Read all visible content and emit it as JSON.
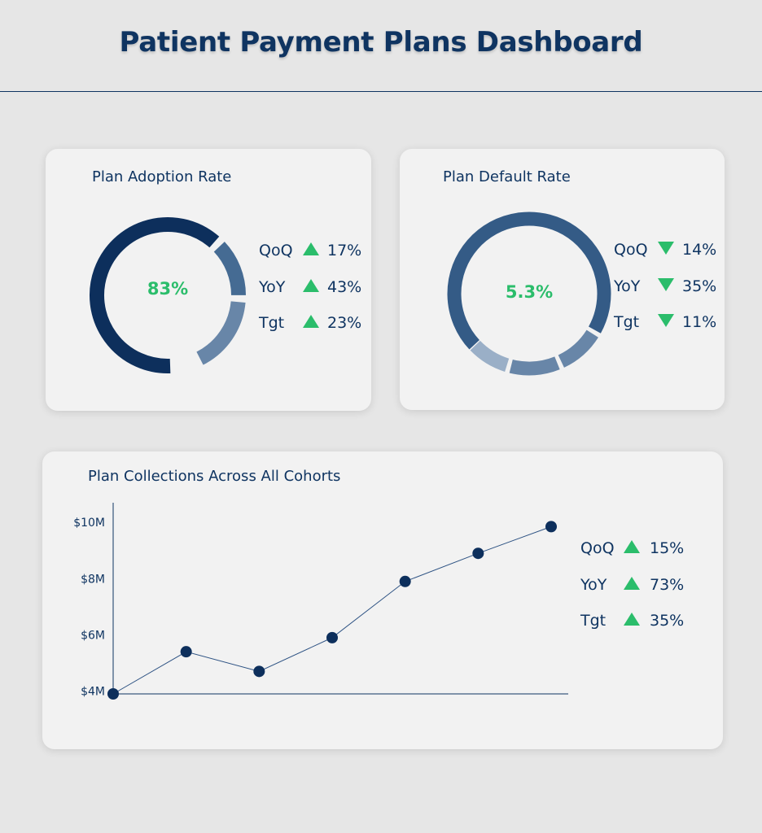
{
  "header": {
    "title": "Patient Payment Plans Dashboard"
  },
  "colors": {
    "navy": "#0f3461",
    "dark_navy": "#0d2f5c",
    "mid_blue": "#456b93",
    "light_blue": "#6886a8",
    "pale_blue": "#9aafc7",
    "green": "#2bbd6b"
  },
  "adoption": {
    "title": "Plan Adoption Rate",
    "value": "83%",
    "stats": [
      {
        "label": "QoQ",
        "direction": "up",
        "value": "17%"
      },
      {
        "label": "YoY",
        "direction": "up",
        "value": "43%"
      },
      {
        "label": "Tgt",
        "direction": "up",
        "value": "23%"
      }
    ]
  },
  "default": {
    "title": "Plan Default Rate",
    "value": "5.3%",
    "stats": [
      {
        "label": "QoQ",
        "direction": "down",
        "value": "14%"
      },
      {
        "label": "YoY",
        "direction": "down",
        "value": "35%"
      },
      {
        "label": "Tgt",
        "direction": "down",
        "value": "11%"
      }
    ]
  },
  "collections": {
    "title": "Plan Collections Across All Cohorts",
    "stats": [
      {
        "label": "QoQ",
        "direction": "up",
        "value": "15%"
      },
      {
        "label": "YoY",
        "direction": "up",
        "value": "73%"
      },
      {
        "label": "Tgt",
        "direction": "up",
        "value": "35%"
      }
    ]
  },
  "chart_data": [
    {
      "type": "pie",
      "variant": "donut",
      "title": "Plan Adoption Rate",
      "center_label": "83%",
      "segments": [
        {
          "value": 62,
          "color": "#0d2f5c"
        },
        {
          "value": 12,
          "color": "#456b93"
        },
        {
          "value": 16,
          "color": "#6886a8"
        }
      ]
    },
    {
      "type": "pie",
      "variant": "donut",
      "title": "Plan Default Rate",
      "center_label": "5.3%",
      "segments": [
        {
          "value": 70,
          "color": "#345b86"
        },
        {
          "value": 9,
          "color": "#6886a8"
        },
        {
          "value": 10,
          "color": "#6886a8"
        },
        {
          "value": 8,
          "color": "#9aafc7"
        }
      ]
    },
    {
      "type": "line",
      "title": "Plan Collections Across All Cohorts",
      "x": [
        0,
        1,
        2,
        3,
        4,
        5,
        6
      ],
      "y": [
        3.9,
        5.4,
        4.7,
        5.9,
        7.9,
        8.9,
        9.85
      ],
      "yticks": [
        {
          "value": 4,
          "label": "$4M"
        },
        {
          "value": 6,
          "label": "$6M"
        },
        {
          "value": 8,
          "label": "$8M"
        },
        {
          "value": 10,
          "label": "$10M"
        }
      ],
      "ylim": [
        3.9,
        10.7
      ],
      "grid": false
    }
  ]
}
